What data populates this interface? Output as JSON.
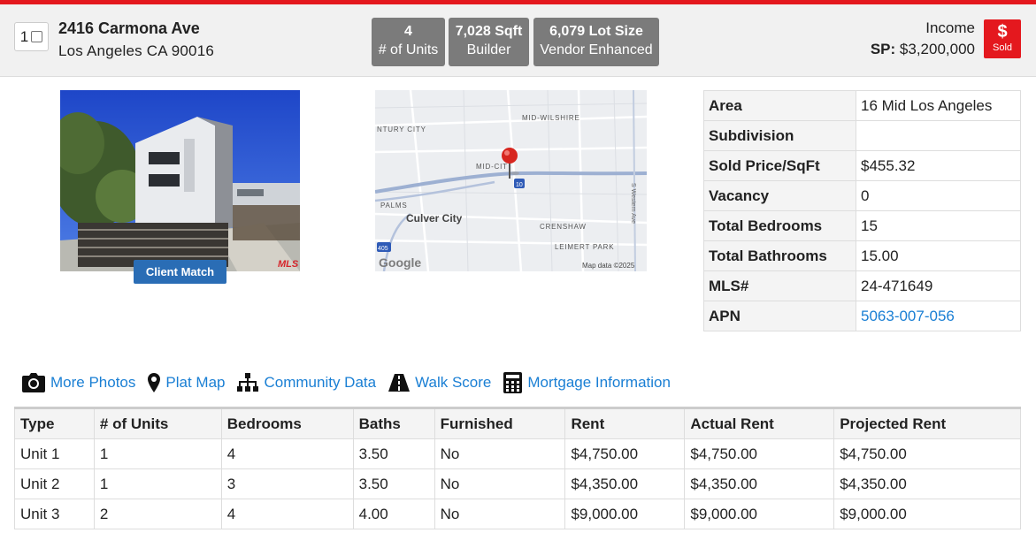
{
  "listing": {
    "select_number": "1",
    "street": "2416 Carmona Ave",
    "city_line": "Los Angeles CA 90016",
    "property_type": "Income",
    "sp_label": "SP:",
    "sp_value": "$3,200,000",
    "status_symbol": "$",
    "status_text": "Sold"
  },
  "stats": [
    {
      "value": "4",
      "label": "# of Units"
    },
    {
      "value": "7,028 Sqft",
      "label": "Builder"
    },
    {
      "value": "6,079 Lot Size",
      "label": "Vendor Enhanced"
    }
  ],
  "photo": {
    "client_match_label": "Client Match",
    "watermark": "MLS"
  },
  "map": {
    "labels": {
      "mid_wilshire": "MID-WILSHIRE",
      "century_city": "NTURY CITY",
      "mid_city": "MID-CIT",
      "palms": "PALMS",
      "culver_city": "Culver City",
      "crenshaw": "CRENSHAW",
      "leimert_park": "LEIMERT PARK",
      "western_ave": "S Western Ave",
      "i10": "10",
      "i405": "405",
      "google": "Google",
      "map_data": "Map data ©2025"
    }
  },
  "details": [
    {
      "label": "Area",
      "value": "16 Mid Los Angeles"
    },
    {
      "label": "Subdivision",
      "value": ""
    },
    {
      "label": "Sold Price/SqFt",
      "value": "$455.32"
    },
    {
      "label": "Vacancy",
      "value": "0"
    },
    {
      "label": "Total Bedrooms",
      "value": "15"
    },
    {
      "label": "Total Bathrooms",
      "value": "15.00"
    },
    {
      "label": "MLS#",
      "value": "24-471649"
    },
    {
      "label": "APN",
      "value": "5063-007-056"
    }
  ],
  "links": [
    {
      "icon": "camera-icon",
      "label": "More Photos"
    },
    {
      "icon": "map-pin-icon",
      "label": "Plat Map"
    },
    {
      "icon": "sitemap-icon",
      "label": "Community Data"
    },
    {
      "icon": "road-icon",
      "label": "Walk Score"
    },
    {
      "icon": "calculator-icon",
      "label": "Mortgage Information"
    }
  ],
  "units_table": {
    "headers": [
      "Type",
      "# of Units",
      "Bedrooms",
      "Baths",
      "Furnished",
      "Rent",
      "Actual Rent",
      "Projected Rent"
    ],
    "rows": [
      [
        "Unit 1",
        "1",
        "4",
        "3.50",
        "No",
        "$4,750.00",
        "$4,750.00",
        "$4,750.00"
      ],
      [
        "Unit 2",
        "1",
        "3",
        "3.50",
        "No",
        "$4,350.00",
        "$4,350.00",
        "$4,350.00"
      ],
      [
        "Unit 3",
        "2",
        "4",
        "4.00",
        "No",
        "$9,000.00",
        "$9,000.00",
        "$9,000.00"
      ]
    ]
  },
  "colors": {
    "accent_red": "#e4181e",
    "link_blue": "#1a7fd4",
    "badge_gray": "#7b7b7b",
    "button_blue": "#2a6db5"
  }
}
